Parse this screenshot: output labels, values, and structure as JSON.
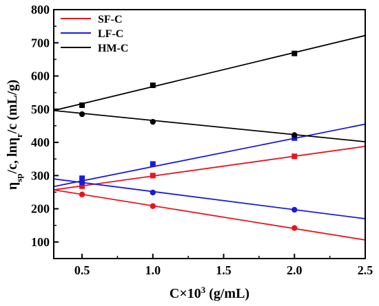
{
  "chart_data": {
    "type": "scatter",
    "xlim": [
      0.3,
      2.5
    ],
    "ylim": [
      50,
      800
    ],
    "x_ticks": [
      "0.5",
      "1.0",
      "1.5",
      "2.0",
      "2.5"
    ],
    "y_ticks": [
      "100",
      "200",
      "300",
      "400",
      "500",
      "600",
      "700",
      "800"
    ],
    "x_tick_values": [
      0.5,
      1.0,
      1.5,
      2.0,
      2.5
    ],
    "y_tick_values": [
      100,
      200,
      300,
      400,
      500,
      600,
      700,
      800
    ],
    "xlabel_main": "C×10",
    "xlabel_sup": "3",
    "xlabel_unit": " (g/mL)",
    "ylabel_p1": "η",
    "ylabel_sub1": "sp",
    "ylabel_p2": "/c, lnη",
    "ylabel_sub2": "r",
    "ylabel_p3": "/c (mL/g)",
    "legend_position": "top-left",
    "series": [
      {
        "name": "SF-C",
        "color": "#e8141e",
        "reduced": {
          "x": [
            0.5,
            1.0,
            2.0
          ],
          "y": [
            268,
            300,
            358
          ],
          "fit": [
            [
              0.3,
              257
            ],
            [
              2.5,
              388
            ]
          ]
        },
        "inherent": {
          "x": [
            0.5,
            1.0,
            2.0
          ],
          "y": [
            243,
            208,
            142
          ],
          "fit": [
            [
              0.3,
              257
            ],
            [
              2.5,
              106
            ]
          ]
        }
      },
      {
        "name": "LF-C",
        "color": "#1a1adc",
        "reduced": {
          "x": [
            0.5,
            1.0,
            2.0
          ],
          "y": [
            292,
            335,
            413
          ],
          "fit": [
            [
              0.3,
              267
            ],
            [
              2.5,
              455
            ]
          ]
        },
        "inherent": {
          "x": [
            0.5,
            1.0,
            2.0
          ],
          "y": [
            279,
            249,
            197
          ],
          "fit": [
            [
              0.3,
              290
            ],
            [
              2.5,
              170
            ]
          ]
        }
      },
      {
        "name": "HM-C",
        "color": "#000000",
        "reduced": {
          "x": [
            0.5,
            1.0,
            2.0
          ],
          "y": [
            512,
            572,
            668
          ],
          "fit": [
            [
              0.3,
              496
            ],
            [
              2.5,
              722
            ]
          ]
        },
        "inherent": {
          "x": [
            0.5,
            1.0,
            2.0
          ],
          "y": [
            485,
            462,
            422
          ],
          "fit": [
            [
              0.3,
              496
            ],
            [
              2.5,
              402
            ]
          ]
        }
      }
    ]
  }
}
